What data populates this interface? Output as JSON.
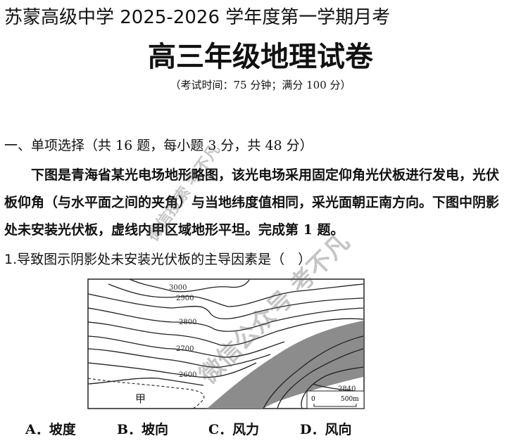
{
  "header": {
    "school_line": "苏蒙高级中学 2025-2026 学年度第一学期月考",
    "title": "高三年级地理试卷",
    "exam_info": "（考试时间：75 分钟；满分 100 分）"
  },
  "section": {
    "heading": "一、单项选择（共 16 题，每小题 3 分，共 48 分）"
  },
  "passage": {
    "text": "下图是青海省某光电场地形略图，该光电场采用固定仰角光伏板进行发电，光伏板仰角（与水平面之间的夹角）与当地纬度值相同，采光面朝正南方向。下图中阴影处未安装光伏板，虚线内甲区域地形平坦。完成第 1 题。"
  },
  "question": {
    "stem": "1.导致图示阴影处未安装光伏板的主导因素是（　）",
    "options": [
      {
        "label": "A．坡度"
      },
      {
        "label": "B．坡向"
      },
      {
        "label": "C．风力"
      },
      {
        "label": "D．风向"
      }
    ]
  },
  "map": {
    "contour_labels": [
      "3000",
      "2900",
      "2800",
      "2700",
      "2600",
      "2840"
    ],
    "region_label": "甲",
    "scale_zero": "0",
    "scale_end": "500m",
    "shade_color": "#8c8c8c"
  },
  "watermark": {
    "texts": [
      "微信搜索 考不凡",
      "微信公众号 考不凡"
    ]
  }
}
